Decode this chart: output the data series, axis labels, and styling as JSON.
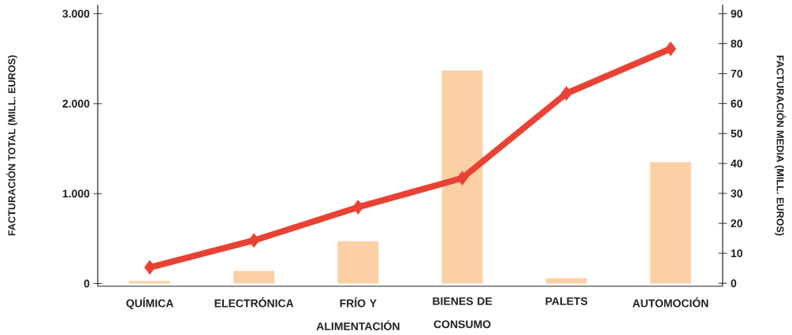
{
  "chart_data": {
    "type": "bar",
    "ylabel": "FACTURACIÓN TOTAL (MILL. EUROS)",
    "y2label": "FACTURACIÓN MEDIA (MILL. EUROS)",
    "categories": [
      "QUÍMICA",
      "ELECTRÓNICA",
      "FRÍO Y ALIMENTACIÓN",
      "BIENES DE CONSUMO",
      "PALETS",
      "AUTOMOCIÓN"
    ],
    "series": [
      {
        "type": "bar",
        "color": "#fcd0a4",
        "values": [
          30,
          140,
          470,
          2370,
          60,
          1350
        ]
      },
      {
        "type": "line",
        "axis": "y2",
        "color": "#e94234",
        "marker": "diamond",
        "line_style": "solid",
        "values": [
          5.3,
          14.3,
          25.4,
          35.1,
          63.4,
          78.3
        ]
      }
    ],
    "ylim": [
      -30,
      3100
    ],
    "yticks": [
      0,
      {
        "value": 1000,
        "label": "1.000"
      },
      {
        "value": 2000,
        "label": "2.000"
      },
      {
        "value": 3000,
        "label": "3.000"
      }
    ],
    "y2lim": [
      -1,
      93
    ],
    "y2ticks": [
      0,
      10,
      20,
      30,
      40,
      50,
      60,
      70,
      80,
      90
    ]
  }
}
